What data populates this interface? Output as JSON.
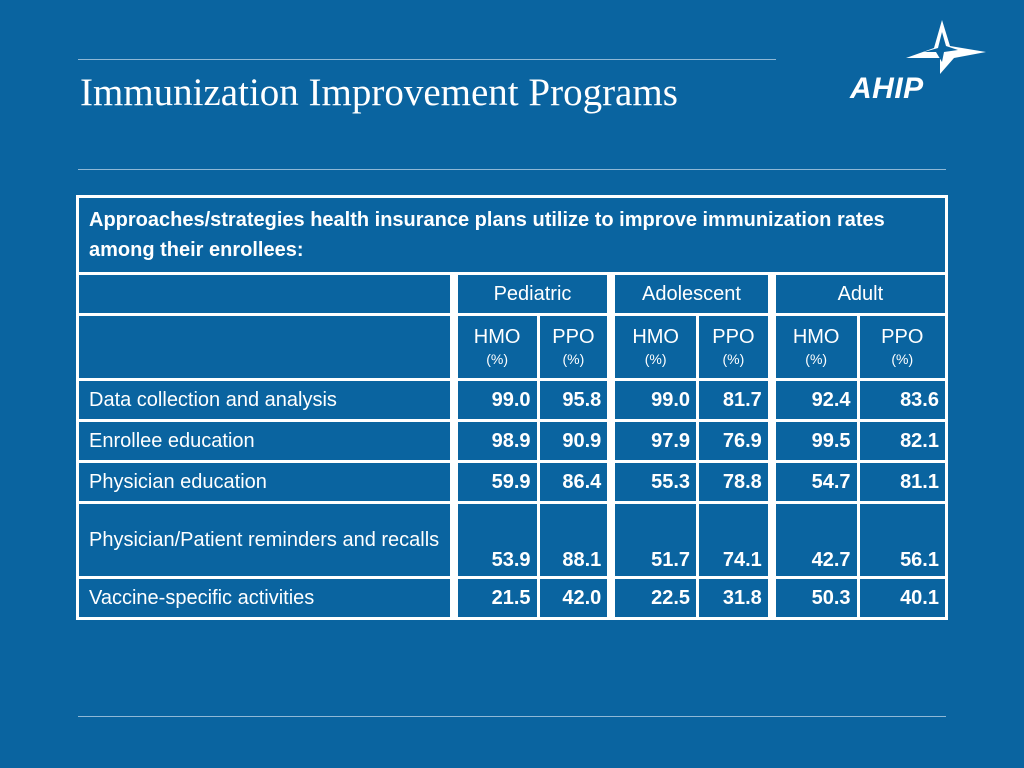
{
  "title": "Immunization Improvement Programs",
  "logo_text": "AHIP",
  "table": {
    "intro": "Approaches/strategies health insurance plans utilize to improve immunization rates among their enrollees:",
    "groups": [
      "Pediatric",
      "Adolescent",
      "Adult"
    ],
    "subheaders": [
      {
        "label": "HMO",
        "unit": "(%)"
      },
      {
        "label": "PPO",
        "unit": "(%)"
      },
      {
        "label": "HMO",
        "unit": "(%)"
      },
      {
        "label": "PPO",
        "unit": "(%)"
      },
      {
        "label": "HMO",
        "unit": "(%)"
      },
      {
        "label": "PPO",
        "unit": "(%)"
      }
    ],
    "rows": [
      {
        "label": "Data collection and analysis",
        "values": [
          "99.0",
          "95.8",
          "99.0",
          "81.7",
          "92.4",
          "83.6"
        ]
      },
      {
        "label": "Enrollee education",
        "values": [
          "98.9",
          "90.9",
          "97.9",
          "76.9",
          "99.5",
          "82.1"
        ]
      },
      {
        "label": "Physician education",
        "values": [
          "59.9",
          "86.4",
          "55.3",
          "78.8",
          "54.7",
          "81.1"
        ]
      },
      {
        "label": "Physician/Patient reminders and recalls",
        "values": [
          "53.9",
          "88.1",
          "51.7",
          "74.1",
          "42.7",
          "56.1"
        ]
      },
      {
        "label": "Vaccine-specific activities",
        "values": [
          "21.5",
          "42.0",
          "22.5",
          "31.8",
          "50.3",
          "40.1"
        ]
      }
    ]
  }
}
